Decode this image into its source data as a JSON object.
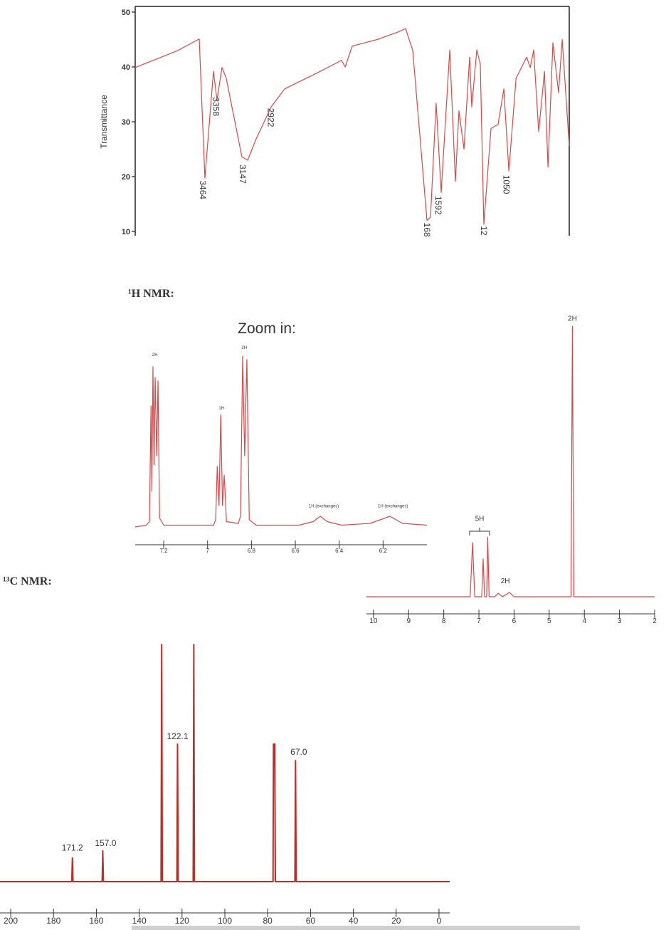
{
  "chart_data": [
    {
      "type": "line",
      "ylabel": "Transmittance",
      "xlim": [
        4000,
        550
      ],
      "ylim": [
        10,
        50
      ],
      "yticks": [
        10,
        20,
        30,
        40,
        50
      ],
      "x": [
        4000,
        3661,
        3491,
        3446,
        3378,
        3350,
        3310,
        3276,
        3152,
        3106,
        3038,
        2920,
        2812,
        2529,
        2360,
        2331,
        2275,
        2077,
        1907,
        1851,
        1794,
        1681,
        1653,
        1608,
        1568,
        1500,
        1455,
        1427,
        1387,
        1342,
        1325,
        1285,
        1257,
        1229,
        1172,
        1116,
        1070,
        1030,
        973,
        889,
        860,
        833,
        793,
        747,
        719,
        680,
        635,
        606,
        550
      ],
      "series": [
        {
          "color": "#d24b4b",
          "values": [
            39.9,
            43,
            45.1,
            19.7,
            39.2,
            34,
            39.9,
            37.9,
            23.6,
            23,
            26.9,
            32.7,
            36,
            39.2,
            41.2,
            40,
            43.8,
            45,
            46.4,
            47,
            43,
            12,
            12.6,
            33.4,
            17.1,
            43.1,
            19.1,
            32,
            25,
            41.8,
            32.7,
            43.1,
            40.5,
            11.3,
            28.8,
            29.5,
            36,
            21,
            37.9,
            41.8,
            39.9,
            43.1,
            28.2,
            39.2,
            21.7,
            44.4,
            35.3,
            45,
            25.6
          ]
        }
      ],
      "annotations": [
        {
          "text": "3464",
          "x": 3464,
          "y": 19.3
        },
        {
          "text": "3358",
          "x": 3358,
          "y": 34.5
        },
        {
          "text": "3147",
          "x": 3147,
          "y": 22.2
        },
        {
          "text": "2922",
          "x": 2922,
          "y": 32.5
        },
        {
          "text": "168",
          "x": 1681,
          "y": 11.6
        },
        {
          "text": "1592",
          "x": 1592,
          "y": 16.5
        },
        {
          "text": "12",
          "x": 1229,
          "y": 11
        },
        {
          "text": "1050",
          "x": 1050,
          "y": 20.3
        }
      ]
    },
    {
      "type": "line",
      "title": "Zoom in:",
      "xlim": [
        7.33,
        6.0
      ],
      "ylim": [
        0,
        100
      ],
      "xticks": [
        7.2,
        7,
        6.8,
        6.6,
        6.4,
        6.2
      ],
      "x": [
        7.33,
        7.28,
        7.265,
        7.258,
        7.254,
        7.249,
        7.244,
        7.239,
        7.232,
        7.226,
        7.219,
        7.2,
        6.973,
        6.963,
        6.956,
        6.948,
        6.94,
        6.932,
        6.924,
        6.914,
        6.86,
        6.85,
        6.84,
        6.831,
        6.821,
        6.81,
        6.778,
        6.583,
        6.519,
        6.486,
        6.454,
        6.389,
        6.26,
        6.168,
        6.112,
        6.0
      ],
      "series": [
        {
          "color": "#d24b4b",
          "values": [
            0,
            1,
            3,
            68,
            20,
            90,
            35,
            84,
            40,
            82,
            5,
            1,
            1,
            4,
            34,
            12,
            63,
            12,
            29,
            3,
            2,
            6,
            96,
            40,
            94,
            4,
            1,
            1,
            3,
            6,
            3,
            1,
            2,
            6,
            2,
            1
          ]
        }
      ],
      "annotations": [
        {
          "text": "2H",
          "x": 7.24,
          "y": 96
        },
        {
          "text": "1H",
          "x": 6.937,
          "y": 66
        },
        {
          "text": "2H",
          "x": 6.833,
          "y": 100
        },
        {
          "text": "1H (exchanges)",
          "x": 6.47,
          "y": 11
        },
        {
          "text": "1H (exchanges)",
          "x": 6.155,
          "y": 11
        }
      ]
    },
    {
      "type": "line",
      "title": "¹H NMR:",
      "xlim": [
        10.2,
        2.0
      ],
      "ylim": [
        0,
        100
      ],
      "xticks": [
        10,
        9,
        8,
        7,
        6,
        5,
        4,
        3,
        2
      ],
      "x": [
        10.2,
        7.25,
        7.18,
        7.12,
        6.92,
        6.88,
        6.84,
        6.78,
        6.75,
        6.71,
        6.55,
        6.45,
        6.33,
        6.13,
        6.0,
        4.38,
        4.34,
        4.3,
        2.0
      ],
      "series": [
        {
          "color": "#d24b4b",
          "values": [
            0,
            0,
            20,
            0,
            0,
            14,
            0,
            0,
            22,
            0,
            0,
            1.3,
            0,
            1.6,
            0,
            0,
            100,
            0,
            0
          ]
        }
      ],
      "annotations": [
        {
          "text": "5H",
          "x": 6.98,
          "y": 28
        },
        {
          "text": "2H",
          "x": 6.25,
          "y": 5
        },
        {
          "text": "2H",
          "x": 4.34,
          "y": 102
        }
      ]
    },
    {
      "type": "line",
      "title": "¹³C NMR:",
      "xlim": [
        205,
        -5
      ],
      "ylim": [
        0,
        100
      ],
      "xticks": [
        200,
        180,
        160,
        140,
        120,
        100,
        80,
        60,
        40,
        20,
        0
      ],
      "x": [
        205,
        171.5,
        171.2,
        170.9,
        157.3,
        157.0,
        156.7,
        129.8,
        129.5,
        129.2,
        122.4,
        122.1,
        121.8,
        114.8,
        114.5,
        114.2,
        77.5,
        77.3,
        77.0,
        76.7,
        76.4,
        67.3,
        67.0,
        66.7,
        -5
      ],
      "series": [
        {
          "color": "#b8302a",
          "values": [
            0,
            0,
            10,
            0,
            0,
            13,
            0,
            0,
            100,
            0,
            0,
            58,
            0,
            0,
            100,
            0,
            0,
            58,
            58,
            58,
            0,
            0,
            51,
            0,
            0
          ]
        }
      ],
      "annotations": [
        {
          "text": "171.2",
          "x": 171.2,
          "y": 13
        },
        {
          "text": "157.0",
          "x": 155.7,
          "y": 15
        },
        {
          "text": "122.1",
          "x": 122.1,
          "y": 60
        },
        {
          "text": "67.0",
          "x": 65.5,
          "y": 53.5
        }
      ]
    }
  ]
}
